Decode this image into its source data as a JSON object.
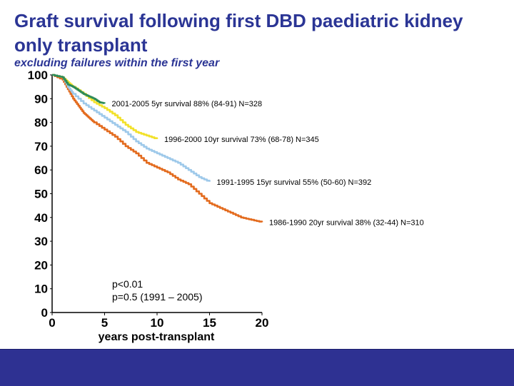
{
  "header": {
    "title": "Graft survival following first DBD paediatric kidney only transplant",
    "subtitle": "excluding failures within the first year"
  },
  "colors": {
    "title": "#2b3595",
    "footer": "#2e3192",
    "era_2001_2005": "#2e8b57",
    "era_1996_2000": "#f2e12a",
    "era_1991_1995": "#9ec9ea",
    "era_1986_1990": "#e36b1e"
  },
  "chart_data": {
    "type": "line",
    "title": "Graft survival following first DBD paediatric kidney only transplant",
    "subtitle": "excluding failures within the first year",
    "xlabel": "years post-transplant",
    "ylabel": "",
    "xlim": [
      0,
      20
    ],
    "ylim": [
      0,
      100
    ],
    "xticks": [
      "0",
      "5",
      "10",
      "15",
      "20"
    ],
    "yticks": [
      "0",
      "10",
      "20",
      "30",
      "40",
      "50",
      "60",
      "70",
      "80",
      "90",
      "100"
    ],
    "series": [
      {
        "name": "2001-2005",
        "color": "#2e8b57",
        "label": "2001-2005 5yr survival 88% (84-91) N=328",
        "x": [
          1,
          1.5,
          2,
          2.5,
          3,
          3.5,
          4,
          4.5,
          5
        ],
        "y": [
          99,
          96,
          95,
          93.5,
          92,
          91,
          90,
          88.5,
          88
        ]
      },
      {
        "name": "1996-2000",
        "color": "#f2e12a",
        "label": "1996-2000 10yr survival 73% (68-78) N=345",
        "x": [
          1,
          1.5,
          2,
          3,
          4,
          5,
          6,
          7,
          8,
          9,
          10
        ],
        "y": [
          99,
          97,
          95,
          92,
          88.5,
          86,
          83,
          79,
          76,
          74.5,
          73
        ]
      },
      {
        "name": "1991-1995",
        "color": "#9ec9ea",
        "label": "1991-1995 15yr survival 55% (50-60) N=392",
        "x": [
          1,
          1.5,
          2,
          3,
          4,
          5,
          6,
          7,
          8,
          9,
          10,
          11,
          12,
          13,
          14,
          15
        ],
        "y": [
          99,
          95,
          92,
          88,
          85,
          82,
          79,
          76,
          72,
          69,
          67,
          65,
          63,
          60,
          57,
          55
        ]
      },
      {
        "name": "1986-1990",
        "color": "#e36b1e",
        "label": "1986-1990 20yr survival 38% (32-44) N=310",
        "x": [
          1,
          1.5,
          2,
          2.5,
          3,
          3.5,
          4,
          5,
          6,
          7,
          8,
          9,
          10,
          11,
          12,
          13,
          14,
          15,
          16,
          17,
          18,
          19,
          20
        ],
        "y": [
          98,
          94,
          90,
          87,
          84,
          82,
          80,
          77,
          74,
          70,
          67,
          63,
          61,
          59,
          56,
          54,
          50,
          46,
          44,
          42,
          40,
          39,
          38
        ]
      }
    ],
    "annotations": [
      "p<0.01",
      "p=0.5 (1991 – 2005)"
    ]
  }
}
